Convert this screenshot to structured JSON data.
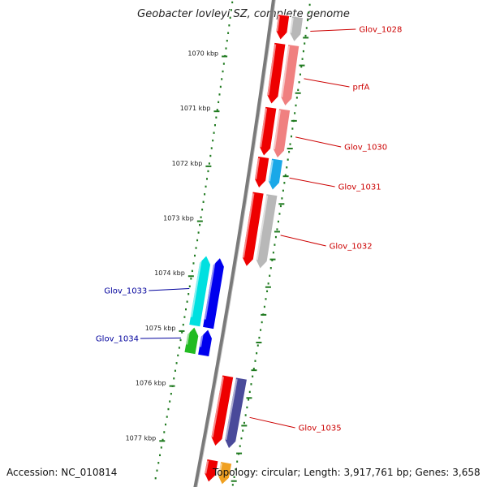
{
  "title": "Geobacter lovleyi SZ, complete genome",
  "footer": {
    "accession": "Accession: NC_010814",
    "summary": "Topology: circular; Length: 3,917,761 bp; Genes: 3,658"
  },
  "colors": {
    "backbone": "#7a7a7a",
    "tick": "#1f7a1f",
    "forward_label": "#cc0000",
    "reverse_label": "#00009c"
  },
  "scale_labels": [
    {
      "text": "1070 kbp",
      "kbp": 1070
    },
    {
      "text": "1071 kbp",
      "kbp": 1071
    },
    {
      "text": "1072 kbp",
      "kbp": 1072
    },
    {
      "text": "1073 kbp",
      "kbp": 1073
    },
    {
      "text": "1074 kbp",
      "kbp": 1074
    },
    {
      "text": "1075 kbp",
      "kbp": 1075
    },
    {
      "text": "1076 kbp",
      "kbp": 1076
    },
    {
      "text": "1077 kbp",
      "kbp": 1077
    }
  ],
  "labels": [
    {
      "text": "Glov_1028",
      "side": "right",
      "color": "#cc0000"
    },
    {
      "text": "prfA",
      "side": "right",
      "color": "#cc0000"
    },
    {
      "text": "Glov_1030",
      "side": "right",
      "color": "#cc0000"
    },
    {
      "text": "Glov_1031",
      "side": "right",
      "color": "#cc0000"
    },
    {
      "text": "Glov_1032",
      "side": "right",
      "color": "#cc0000"
    },
    {
      "text": "Glov_1033",
      "side": "left",
      "color": "#00009c"
    },
    {
      "text": "Glov_1034",
      "side": "left",
      "color": "#00009c"
    },
    {
      "text": "Glov_1035",
      "side": "right",
      "color": "#cc0000"
    }
  ],
  "genes": [
    {
      "name": "Glov_1028",
      "start": 1069.15,
      "end": 1069.6,
      "strand": "+",
      "cog_color": "#b8b8b8"
    },
    {
      "name": "prfA",
      "start": 1069.66,
      "end": 1070.76,
      "strand": "+",
      "cog_color": "#f08080"
    },
    {
      "name": "Glov_1030",
      "start": 1070.82,
      "end": 1071.7,
      "strand": "+",
      "cog_color": "#f08080"
    },
    {
      "name": "Glov_1031",
      "start": 1071.72,
      "end": 1072.28,
      "strand": "+",
      "cog_color": "#1aa8e8"
    },
    {
      "name": "Glov_1032",
      "start": 1072.36,
      "end": 1073.7,
      "strand": "+",
      "cog_color": "#b8b8b8"
    },
    {
      "name": "Glov_1033",
      "start": 1073.62,
      "end": 1074.9,
      "strand": "-",
      "cog_color": "#00e0e0",
      "strand_color": "#0000ee"
    },
    {
      "name": "Glov_1034",
      "start": 1074.92,
      "end": 1075.4,
      "strand": "-",
      "cog_color": "#22bb22",
      "strand_color": "#0000ee"
    },
    {
      "name": "Glov_1035",
      "start": 1075.68,
      "end": 1076.95,
      "strand": "+",
      "cog_color": "#4a4a9a"
    },
    {
      "name": "",
      "start": 1077.2,
      "end": 1077.6,
      "strand": "+",
      "cog_color": "#f0a020"
    }
  ]
}
